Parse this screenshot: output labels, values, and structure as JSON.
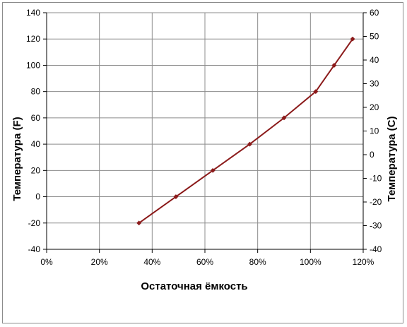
{
  "chart_data": {
    "type": "line",
    "title": "",
    "xlabel": "Остаточная ёмкость",
    "ylabel": "Температура  (F)",
    "y2label": "Температура (C)",
    "xlim": [
      0,
      120
    ],
    "ylim": [
      -40,
      140
    ],
    "y2lim": [
      -40,
      60
    ],
    "x_ticks": [
      "0%",
      "20%",
      "40%",
      "60%",
      "80%",
      "100%",
      "120%"
    ],
    "y_ticks": [
      "-40",
      "-20",
      "0",
      "20",
      "40",
      "60",
      "80",
      "100",
      "120",
      "140"
    ],
    "y2_ticks": [
      "-40",
      "-30",
      "-20",
      "-10",
      "0",
      "10",
      "20",
      "30",
      "40",
      "50",
      "60"
    ],
    "grid": true,
    "legend": "none",
    "series": [
      {
        "color": "#8b1a1a",
        "x": [
          35,
          49,
          63,
          77,
          90,
          102,
          109,
          116
        ],
        "y": [
          -20,
          0,
          20,
          40,
          60,
          80,
          100,
          120
        ]
      }
    ]
  }
}
